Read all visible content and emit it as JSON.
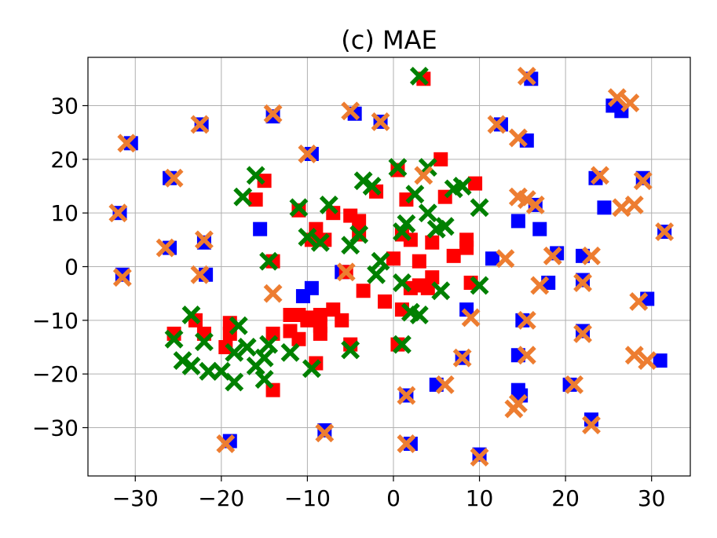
{
  "chart_data": {
    "type": "scatter",
    "title": "(c) MAE",
    "xlabel": "",
    "ylabel": "",
    "xlim": [
      -35.5,
      34.5
    ],
    "ylim": [
      -39,
      39
    ],
    "xticks": [
      -30,
      -20,
      -10,
      0,
      10,
      20,
      30
    ],
    "yticks": [
      -30,
      -20,
      -10,
      0,
      10,
      20,
      30
    ],
    "xtick_labels": [
      "−30",
      "−20",
      "−10",
      "0",
      "10",
      "20",
      "30"
    ],
    "ytick_labels": [
      "−30",
      "−20",
      "−10",
      "0",
      "10",
      "20",
      "30"
    ],
    "grid": true,
    "legend": "none",
    "series": [
      {
        "color": "#0000ff",
        "marker": "square",
        "points": [
          [
            -30.5,
            23
          ],
          [
            -31.8,
            10
          ],
          [
            -31.5,
            -1.5
          ],
          [
            -26,
            16.5
          ],
          [
            -26,
            3.5
          ],
          [
            -22.3,
            26.5
          ],
          [
            -22,
            4.5
          ],
          [
            -21.8,
            -1.5
          ],
          [
            -19,
            -32.5
          ],
          [
            -15.5,
            7
          ],
          [
            -14,
            28
          ],
          [
            -10.5,
            -5.5
          ],
          [
            -9.5,
            -4
          ],
          [
            -9.5,
            21
          ],
          [
            -8,
            -30.5
          ],
          [
            -6,
            -1
          ],
          [
            -4.5,
            28.5
          ],
          [
            -1.5,
            27
          ],
          [
            1.5,
            -24
          ],
          [
            2,
            -33
          ],
          [
            5,
            -22
          ],
          [
            8.5,
            -8
          ],
          [
            8,
            -17
          ],
          [
            10,
            -35
          ],
          [
            11.5,
            1.5
          ],
          [
            12.5,
            26.5
          ],
          [
            14.5,
            8.5
          ],
          [
            14.5,
            -16.5
          ],
          [
            15,
            -10
          ],
          [
            14.5,
            -23
          ],
          [
            14.8,
            -24
          ],
          [
            15.5,
            23.5
          ],
          [
            16,
            35
          ],
          [
            16.5,
            11.5
          ],
          [
            17,
            7
          ],
          [
            18,
            -3
          ],
          [
            19,
            2.5
          ],
          [
            20.5,
            -22
          ],
          [
            22,
            2
          ],
          [
            22,
            -2.5
          ],
          [
            22,
            -12
          ],
          [
            23,
            -28.5
          ],
          [
            23.5,
            16.5
          ],
          [
            24.5,
            11
          ],
          [
            25.5,
            30
          ],
          [
            26.5,
            29
          ],
          [
            29,
            16.5
          ],
          [
            29.5,
            -6
          ],
          [
            31,
            -17.5
          ],
          [
            31.5,
            6.5
          ]
        ]
      },
      {
        "color": "#ff0000",
        "marker": "square",
        "points": [
          [
            3.5,
            35
          ],
          [
            5.5,
            20
          ],
          [
            0.5,
            18
          ],
          [
            1.5,
            12.5
          ],
          [
            6,
            13
          ],
          [
            9.5,
            15.5
          ],
          [
            -2,
            14
          ],
          [
            -16,
            12.5
          ],
          [
            -15,
            16
          ],
          [
            -11,
            10.5
          ],
          [
            -7,
            10
          ],
          [
            -5,
            9.5
          ],
          [
            -4,
            8.5
          ],
          [
            -9,
            7
          ],
          [
            -9.5,
            5
          ],
          [
            -8,
            5
          ],
          [
            -4,
            6
          ],
          [
            -14,
            1
          ],
          [
            1,
            6
          ],
          [
            2,
            5
          ],
          [
            4.5,
            4.5
          ],
          [
            8.5,
            5
          ],
          [
            8.5,
            3.5
          ],
          [
            7,
            2
          ],
          [
            3,
            1
          ],
          [
            0,
            1.5
          ],
          [
            -5.5,
            -1
          ],
          [
            4.5,
            -2
          ],
          [
            4,
            -4
          ],
          [
            2,
            -4
          ],
          [
            3,
            -3.5
          ],
          [
            9,
            -3
          ],
          [
            -3.5,
            -4.5
          ],
          [
            -1,
            -6.5
          ],
          [
            1,
            -8
          ],
          [
            -7,
            -8
          ],
          [
            -8.5,
            -9
          ],
          [
            -6,
            -10
          ],
          [
            -10,
            -9.5
          ],
          [
            -11,
            -9
          ],
          [
            -12,
            -9
          ],
          [
            -12,
            -12
          ],
          [
            -14,
            -12.5
          ],
          [
            -11,
            -13.5
          ],
          [
            -8.5,
            -12.5
          ],
          [
            -8.5,
            -11
          ],
          [
            -10,
            -10
          ],
          [
            -19,
            -10.5
          ],
          [
            -19,
            -12.5
          ],
          [
            -19.5,
            -15
          ],
          [
            -23,
            -10
          ],
          [
            -22,
            -12.5
          ],
          [
            -25.5,
            -12.5
          ],
          [
            -5,
            -14.5
          ],
          [
            0.5,
            -14.5
          ],
          [
            -9,
            -18
          ],
          [
            -14,
            -23
          ]
        ]
      },
      {
        "color": "#008000",
        "marker": "x",
        "points": [
          [
            3,
            35.5
          ],
          [
            4,
            18.5
          ],
          [
            0.5,
            18.5
          ],
          [
            -16,
            17
          ],
          [
            -17.5,
            13
          ],
          [
            -11,
            11
          ],
          [
            -7.5,
            11.5
          ],
          [
            -3.5,
            16
          ],
          [
            -2.5,
            15
          ],
          [
            2.5,
            13.5
          ],
          [
            7,
            14.5
          ],
          [
            8,
            15
          ],
          [
            10,
            11
          ],
          [
            4,
            10
          ],
          [
            1.5,
            8
          ],
          [
            5,
            7
          ],
          [
            6,
            7.5
          ],
          [
            1,
            6.5
          ],
          [
            -10,
            5.5
          ],
          [
            -8.5,
            4.5
          ],
          [
            -5,
            4
          ],
          [
            -4,
            6
          ],
          [
            -14.5,
            1
          ],
          [
            -1.5,
            1
          ],
          [
            -2,
            -1.5
          ],
          [
            1,
            -3
          ],
          [
            5.5,
            -4.5
          ],
          [
            10,
            -3.5
          ],
          [
            2,
            -8.5
          ],
          [
            3,
            -9
          ],
          [
            -23.5,
            -9
          ],
          [
            -25.5,
            -13.5
          ],
          [
            -22,
            -14
          ],
          [
            -18,
            -11
          ],
          [
            -17,
            -15
          ],
          [
            -14.5,
            -14.5
          ],
          [
            -15,
            -17
          ],
          [
            -16,
            -18.5
          ],
          [
            -24.5,
            -17.5
          ],
          [
            -23.5,
            -18.5
          ],
          [
            -21.5,
            -19.5
          ],
          [
            -20,
            -19.5
          ],
          [
            -18.5,
            -21.5
          ],
          [
            -15,
            -21
          ],
          [
            -12,
            -16
          ],
          [
            -9.5,
            -19
          ],
          [
            -5,
            -15.5
          ],
          [
            1,
            -14.5
          ],
          [
            -18.5,
            -16
          ]
        ]
      },
      {
        "color": "#ed7d31",
        "marker": "x",
        "points": [
          [
            15.5,
            35.5
          ],
          [
            26,
            31.5
          ],
          [
            27.5,
            30.5
          ],
          [
            -14,
            28.5
          ],
          [
            -5,
            29
          ],
          [
            -1.5,
            27
          ],
          [
            -22.5,
            26.5
          ],
          [
            -31,
            23
          ],
          [
            -10,
            21
          ],
          [
            12,
            26.5
          ],
          [
            14.5,
            24
          ],
          [
            -25.5,
            16.5
          ],
          [
            3.5,
            17
          ],
          [
            24,
            17
          ],
          [
            29,
            16
          ],
          [
            14.5,
            13
          ],
          [
            15.5,
            12.5
          ],
          [
            16.5,
            11.5
          ],
          [
            26.5,
            11
          ],
          [
            28,
            11.5
          ],
          [
            -32,
            10
          ],
          [
            -22,
            5
          ],
          [
            -26.5,
            3.5
          ],
          [
            31.5,
            6.5
          ],
          [
            13,
            1.5
          ],
          [
            18.5,
            2
          ],
          [
            23,
            2
          ],
          [
            -22.5,
            -1.5
          ],
          [
            -31.5,
            -2
          ],
          [
            -5.5,
            -1
          ],
          [
            17,
            -3.5
          ],
          [
            22,
            -3
          ],
          [
            -14,
            -5
          ],
          [
            28.5,
            -6.5
          ],
          [
            9,
            -9.5
          ],
          [
            15.5,
            -10
          ],
          [
            22,
            -12.5
          ],
          [
            8,
            -17
          ],
          [
            15.5,
            -16.5
          ],
          [
            28,
            -16.5
          ],
          [
            29.5,
            -17.5
          ],
          [
            21,
            -22
          ],
          [
            6,
            -22
          ],
          [
            1.5,
            -24
          ],
          [
            14.5,
            -25.5
          ],
          [
            14,
            -26.5
          ],
          [
            23,
            -29.5
          ],
          [
            -8,
            -31
          ],
          [
            -19.5,
            -33
          ],
          [
            1.5,
            -33
          ],
          [
            10,
            -35.5
          ]
        ]
      }
    ]
  }
}
